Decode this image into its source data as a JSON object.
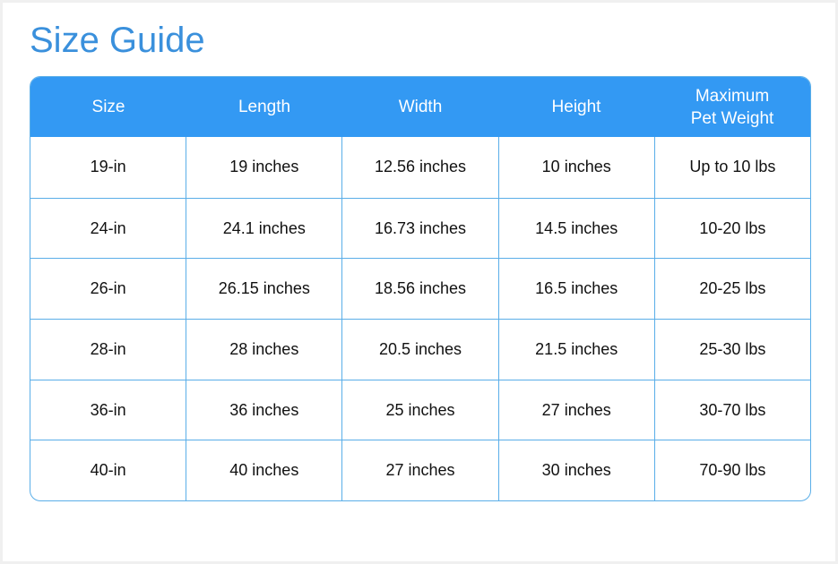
{
  "title": "Size Guide",
  "colors": {
    "accent": "#3399f3",
    "title": "#3a90dc",
    "border": "#5aaee8"
  },
  "table": {
    "headers": [
      "Size",
      "Length",
      "Width",
      "Height",
      "Maximum\nPet Weight"
    ],
    "rows": [
      [
        "19-in",
        "19 inches",
        "12.56 inches",
        "10 inches",
        "Up to 10 lbs"
      ],
      [
        "24-in",
        "24.1 inches",
        "16.73 inches",
        "14.5 inches",
        "10-20 lbs"
      ],
      [
        "26-in",
        "26.15 inches",
        "18.56 inches",
        "16.5 inches",
        "20-25 lbs"
      ],
      [
        "28-in",
        "28 inches",
        "20.5 inches",
        "21.5 inches",
        "25-30 lbs"
      ],
      [
        "36-in",
        "36 inches",
        "25 inches",
        "27 inches",
        "30-70 lbs"
      ],
      [
        "40-in",
        "40 inches",
        "27 inches",
        "30 inches",
        "70-90 lbs"
      ]
    ]
  }
}
